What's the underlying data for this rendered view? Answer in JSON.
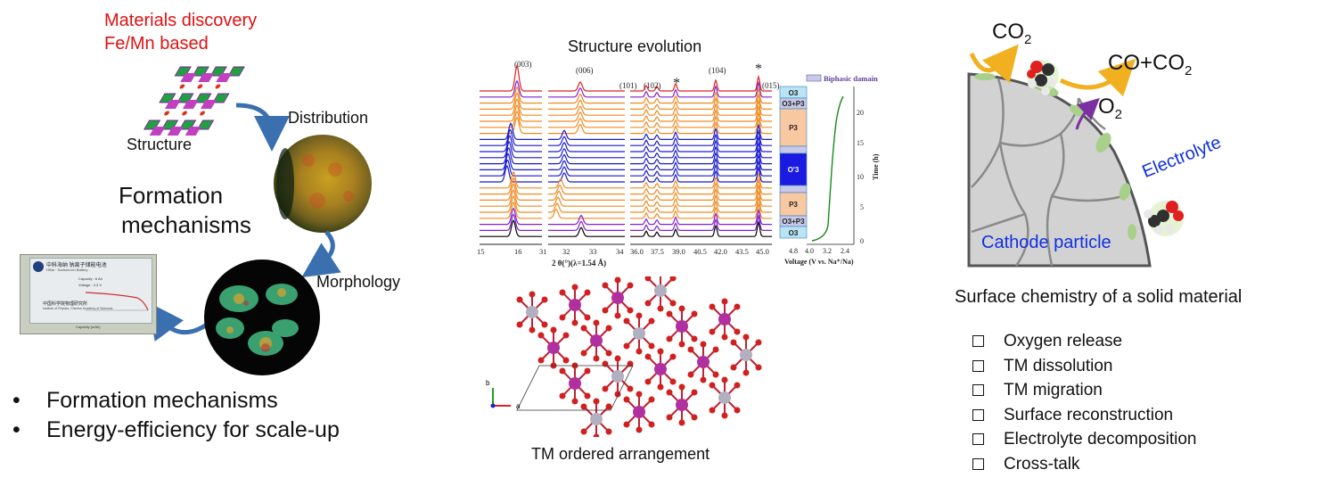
{
  "left": {
    "title_line1": "Materials discovery",
    "title_line2": "Fe/Mn based",
    "structure_label": "Structure",
    "distribution_label": "Distribution",
    "formation_line1": "Formation",
    "formation_line2": "mechanisms",
    "morphology_label": "Morphology",
    "battery_text_line1": "中科海纳 钠离子储能电池",
    "battery_text_line2": "HiNa · Sodium-ion Battery",
    "battery_capacity": "Capacity : 6 Ah",
    "battery_voltage": "Voltage : 3.3 V",
    "battery_institute": "中国科学院物理研究所",
    "battery_institute_en": "Institute of Physics, Chinese Academy of Sciences",
    "battery_axis": "Capacity (mAh)",
    "bullets": [
      "Formation mechanisms",
      "Energy-efficiency for scale-up"
    ]
  },
  "middle": {
    "title": "Structure evolution",
    "peaks": [
      "(003)",
      "(006)",
      "(101)",
      "(102)",
      "*",
      "(104)",
      "*",
      "(015)"
    ],
    "x_ticks_1": [
      "15",
      "16"
    ],
    "x_ticks_2": [
      "31",
      "32",
      "33",
      "34"
    ],
    "x_ticks_3": [
      "36.0",
      "37.5",
      "39.0",
      "40.5",
      "42.0",
      "43.5",
      "45.0"
    ],
    "x_label": "2 θ(°)(λ=1.54 Å)",
    "phases": [
      "O3",
      "O3+P3",
      "P3",
      "O'3",
      "P3",
      "O3+P3",
      "O3"
    ],
    "legend": "Biphasic damain",
    "voltage_ticks": [
      "4.8",
      "4.0",
      "3.2",
      "2.4"
    ],
    "voltage_label": "Voltage (V vs. Na⁺/Na)",
    "time_ticks": [
      "20",
      "15",
      "10",
      "5",
      "0"
    ],
    "time_label": "Time (h)",
    "axis_b": "b",
    "axis_a": "a",
    "caption": "TM ordered arrangement"
  },
  "right": {
    "co2": "CO",
    "co2_sub": "2",
    "co_co2": "CO+CO",
    "co_co2_sub": "2",
    "o2": "O",
    "o2_sub": "2",
    "electrolyte": "Electrolyte",
    "cathode": "Cathode particle",
    "caption": "Surface chemistry of a solid material",
    "checklist": [
      "Oxygen release",
      "TM dissolution",
      "TM migration",
      "Surface reconstruction",
      "Electrolyte decomposition",
      "Cross-talk"
    ]
  },
  "colors": {
    "red_text": "#e01010",
    "blue_text": "#1030e0",
    "arrow_blue": "#3a6fb0",
    "xrd_red": "#e02020",
    "xrd_purple": "#8020d0",
    "xrd_orange": "#f08a20",
    "xrd_blue": "#1a1ad0",
    "xrd_black": "#000000",
    "voltage_green": "#1a8a1a",
    "cathode_grey": "#d2d2d2",
    "surface_green": "#a8d08a",
    "arrow_orange": "#f0b020",
    "arrow_purple": "#7a30a0"
  }
}
